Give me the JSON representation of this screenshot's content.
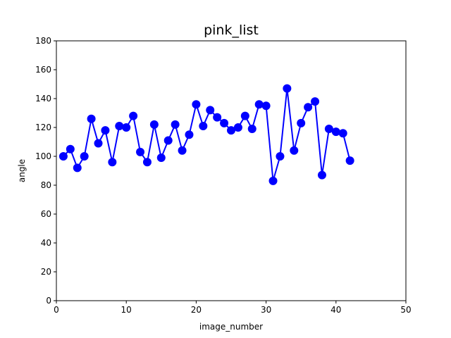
{
  "chart_data": {
    "type": "line",
    "title": "pink_list",
    "xlabel": "image_number",
    "ylabel": "angle",
    "xlim": [
      0,
      50
    ],
    "ylim": [
      0,
      180
    ],
    "xticks": [
      0,
      10,
      20,
      30,
      40,
      50
    ],
    "yticks": [
      0,
      20,
      40,
      60,
      80,
      100,
      120,
      140,
      160,
      180
    ],
    "grid": false,
    "series": [
      {
        "color": "#0000ff",
        "marker": "circle",
        "x": [
          1,
          2,
          3,
          4,
          5,
          6,
          7,
          8,
          9,
          10,
          11,
          12,
          13,
          14,
          15,
          16,
          17,
          18,
          19,
          20,
          21,
          22,
          23,
          24,
          25,
          26,
          27,
          28,
          29,
          30,
          31,
          32,
          33,
          34,
          35,
          36,
          37,
          38,
          39,
          40,
          41,
          42
        ],
        "y": [
          100,
          105,
          92,
          100,
          126,
          109,
          118,
          96,
          121,
          120,
          128,
          103,
          96,
          122,
          99,
          111,
          122,
          104,
          115,
          136,
          121,
          132,
          127,
          123,
          118,
          120,
          128,
          119,
          136,
          135,
          83,
          100,
          147,
          104,
          123,
          134,
          138,
          87,
          119,
          117,
          116,
          97
        ]
      }
    ]
  }
}
